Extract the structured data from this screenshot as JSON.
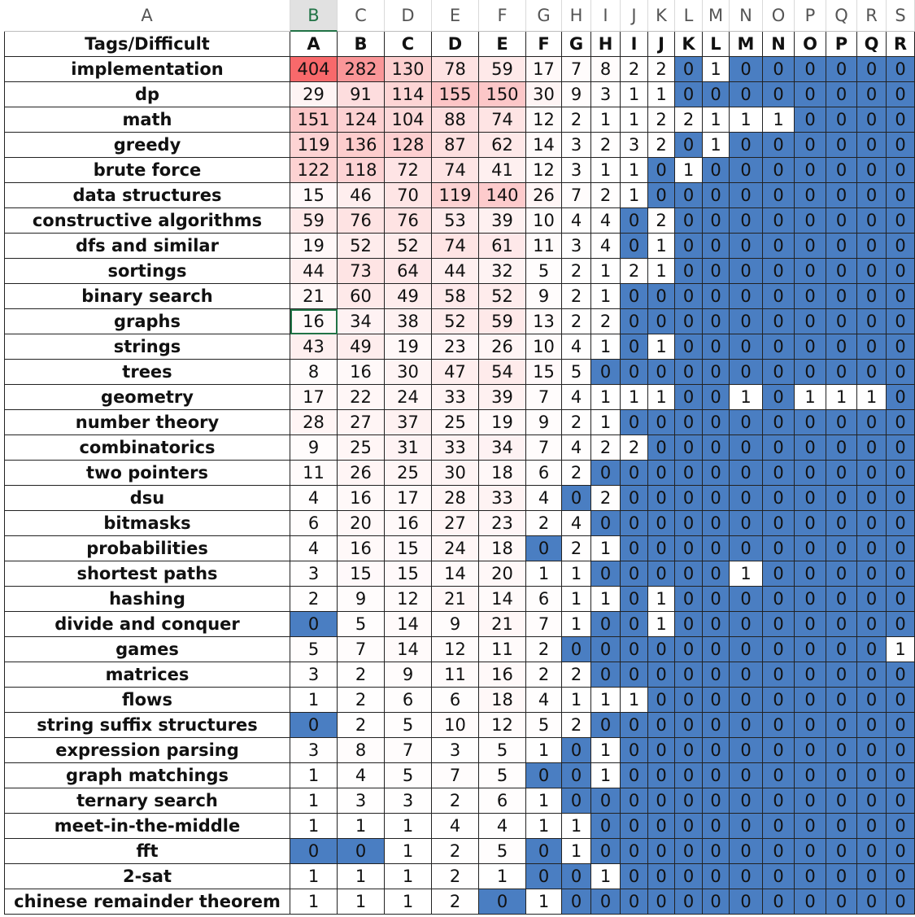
{
  "column_letters": [
    "A",
    "B",
    "C",
    "D",
    "E",
    "F",
    "G",
    "H",
    "I",
    "J",
    "K",
    "L",
    "M",
    "N",
    "O",
    "P",
    "Q",
    "R",
    "S"
  ],
  "table": {
    "header": [
      "Tags/Difficult",
      "A",
      "B",
      "C",
      "D",
      "E",
      "F",
      "G",
      "H",
      "I",
      "J",
      "K",
      "L",
      "M",
      "N",
      "O",
      "P",
      "Q",
      "R"
    ],
    "rows": [
      [
        "implementation",
        404,
        282,
        130,
        78,
        59,
        17,
        7,
        8,
        2,
        2,
        0,
        1,
        0,
        0,
        0,
        0,
        0,
        0
      ],
      [
        "dp",
        29,
        91,
        114,
        155,
        150,
        30,
        9,
        3,
        1,
        1,
        0,
        0,
        0,
        0,
        0,
        0,
        0,
        0
      ],
      [
        "math",
        151,
        124,
        104,
        88,
        74,
        12,
        2,
        1,
        1,
        2,
        2,
        1,
        1,
        1,
        0,
        0,
        0,
        0
      ],
      [
        "greedy",
        119,
        136,
        128,
        87,
        62,
        14,
        3,
        2,
        3,
        2,
        0,
        1,
        0,
        0,
        0,
        0,
        0,
        0
      ],
      [
        "brute force",
        122,
        118,
        72,
        74,
        41,
        12,
        3,
        1,
        1,
        0,
        1,
        0,
        0,
        0,
        0,
        0,
        0,
        0
      ],
      [
        "data structures",
        15,
        46,
        70,
        119,
        140,
        26,
        7,
        2,
        1,
        0,
        0,
        0,
        0,
        0,
        0,
        0,
        0,
        0
      ],
      [
        "constructive algorithms",
        59,
        76,
        76,
        53,
        39,
        10,
        4,
        4,
        0,
        2,
        0,
        0,
        0,
        0,
        0,
        0,
        0,
        0
      ],
      [
        "dfs and similar",
        19,
        52,
        52,
        74,
        61,
        11,
        3,
        4,
        0,
        1,
        0,
        0,
        0,
        0,
        0,
        0,
        0,
        0
      ],
      [
        "sortings",
        44,
        73,
        64,
        44,
        32,
        5,
        2,
        1,
        2,
        1,
        0,
        0,
        0,
        0,
        0,
        0,
        0,
        0
      ],
      [
        "binary search",
        21,
        60,
        49,
        58,
        52,
        9,
        2,
        1,
        0,
        0,
        0,
        0,
        0,
        0,
        0,
        0,
        0,
        0
      ],
      [
        "graphs",
        16,
        34,
        38,
        52,
        59,
        13,
        2,
        2,
        0,
        0,
        0,
        0,
        0,
        0,
        0,
        0,
        0,
        0
      ],
      [
        "strings",
        43,
        49,
        19,
        23,
        26,
        10,
        4,
        1,
        0,
        1,
        0,
        0,
        0,
        0,
        0,
        0,
        0,
        0
      ],
      [
        "trees",
        8,
        16,
        30,
        47,
        54,
        15,
        5,
        0,
        0,
        0,
        0,
        0,
        0,
        0,
        0,
        0,
        0,
        0
      ],
      [
        "geometry",
        17,
        22,
        24,
        33,
        39,
        7,
        4,
        1,
        1,
        1,
        0,
        0,
        1,
        0,
        1,
        1,
        1,
        0
      ],
      [
        "number theory",
        28,
        27,
        37,
        25,
        19,
        9,
        2,
        1,
        0,
        0,
        0,
        0,
        0,
        0,
        0,
        0,
        0,
        0
      ],
      [
        "combinatorics",
        9,
        25,
        31,
        33,
        34,
        7,
        4,
        2,
        2,
        0,
        0,
        0,
        0,
        0,
        0,
        0,
        0,
        0
      ],
      [
        "two pointers",
        11,
        26,
        25,
        30,
        18,
        6,
        2,
        0,
        0,
        0,
        0,
        0,
        0,
        0,
        0,
        0,
        0,
        0
      ],
      [
        "dsu",
        4,
        16,
        17,
        28,
        33,
        4,
        0,
        2,
        0,
        0,
        0,
        0,
        0,
        0,
        0,
        0,
        0,
        0
      ],
      [
        "bitmasks",
        6,
        20,
        16,
        27,
        23,
        2,
        4,
        0,
        0,
        0,
        0,
        0,
        0,
        0,
        0,
        0,
        0,
        0
      ],
      [
        "probabilities",
        4,
        16,
        15,
        24,
        18,
        0,
        2,
        1,
        0,
        0,
        0,
        0,
        0,
        0,
        0,
        0,
        0,
        0
      ],
      [
        "shortest paths",
        3,
        15,
        15,
        14,
        20,
        1,
        1,
        0,
        0,
        0,
        0,
        0,
        1,
        0,
        0,
        0,
        0,
        0
      ],
      [
        "hashing",
        2,
        9,
        12,
        21,
        14,
        6,
        1,
        1,
        0,
        1,
        0,
        0,
        0,
        0,
        0,
        0,
        0,
        0
      ],
      [
        "divide and conquer",
        0,
        5,
        14,
        9,
        21,
        7,
        1,
        0,
        0,
        1,
        0,
        0,
        0,
        0,
        0,
        0,
        0,
        0
      ],
      [
        "games",
        5,
        7,
        14,
        12,
        11,
        2,
        0,
        0,
        0,
        0,
        0,
        0,
        0,
        0,
        0,
        0,
        0,
        1
      ],
      [
        "matrices",
        3,
        2,
        9,
        11,
        16,
        2,
        2,
        0,
        0,
        0,
        0,
        0,
        0,
        0,
        0,
        0,
        0,
        0
      ],
      [
        "flows",
        1,
        2,
        6,
        6,
        18,
        4,
        1,
        1,
        1,
        0,
        0,
        0,
        0,
        0,
        0,
        0,
        0,
        0
      ],
      [
        "string suffix structures",
        0,
        2,
        5,
        10,
        12,
        5,
        2,
        0,
        0,
        0,
        0,
        0,
        0,
        0,
        0,
        0,
        0,
        0
      ],
      [
        "expression parsing",
        3,
        8,
        7,
        3,
        5,
        1,
        0,
        1,
        0,
        0,
        0,
        0,
        0,
        0,
        0,
        0,
        0,
        0
      ],
      [
        "graph matchings",
        1,
        4,
        5,
        7,
        5,
        0,
        0,
        1,
        0,
        0,
        0,
        0,
        0,
        0,
        0,
        0,
        0,
        0
      ],
      [
        "ternary search",
        1,
        3,
        3,
        2,
        6,
        1,
        0,
        0,
        0,
        0,
        0,
        0,
        0,
        0,
        0,
        0,
        0,
        0
      ],
      [
        "meet-in-the-middle",
        1,
        1,
        1,
        4,
        4,
        1,
        1,
        0,
        0,
        0,
        0,
        0,
        0,
        0,
        0,
        0,
        0,
        0
      ],
      [
        "fft",
        0,
        0,
        1,
        2,
        5,
        0,
        1,
        0,
        0,
        0,
        0,
        0,
        0,
        0,
        0,
        0,
        0,
        0
      ],
      [
        "2-sat",
        1,
        1,
        1,
        2,
        1,
        0,
        0,
        1,
        0,
        0,
        0,
        0,
        0,
        0,
        0,
        0,
        0,
        0
      ],
      [
        "chinese remainder theorem",
        1,
        1,
        1,
        2,
        0,
        1,
        0,
        0,
        0,
        0,
        0,
        0,
        0,
        0,
        0,
        0,
        0,
        0
      ]
    ]
  },
  "color_scale": {
    "zero_color": "#4a7ec2",
    "low_color": "#ffffff",
    "high_color": "#f8696b"
  }
}
